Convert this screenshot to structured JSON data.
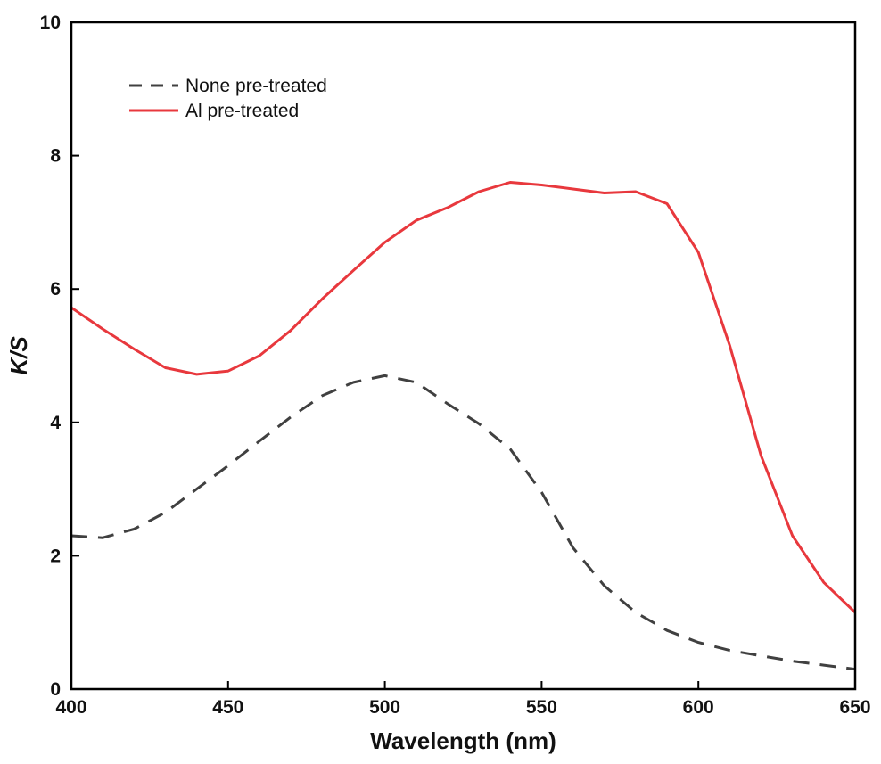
{
  "chart_data": {
    "type": "line",
    "title": "",
    "xlabel": "Wavelength (nm)",
    "ylabel": "K/S",
    "xlim": [
      400,
      650
    ],
    "ylim": [
      0,
      10
    ],
    "xticks": [
      400,
      450,
      500,
      550,
      600,
      650
    ],
    "yticks": [
      0,
      2,
      4,
      6,
      8,
      10
    ],
    "xtick_labels": [
      "400",
      "450",
      "500",
      "550",
      "600",
      "650"
    ],
    "ytick_labels": [
      "0",
      "2",
      "4",
      "6",
      "8",
      "10"
    ],
    "grid": false,
    "legend_position": "top-left",
    "x": [
      400,
      410,
      420,
      430,
      440,
      450,
      460,
      470,
      480,
      490,
      500,
      510,
      520,
      530,
      540,
      550,
      560,
      570,
      580,
      590,
      600,
      610,
      620,
      630,
      640,
      650
    ],
    "series": [
      {
        "name": "None pre-treated",
        "style": "dashed",
        "color": "#404040",
        "values": [
          2.3,
          2.27,
          2.4,
          2.65,
          3.0,
          3.35,
          3.72,
          4.08,
          4.4,
          4.6,
          4.7,
          4.6,
          4.28,
          3.98,
          3.6,
          2.95,
          2.12,
          1.55,
          1.15,
          0.88,
          0.7,
          0.58,
          0.5,
          0.42,
          0.36,
          0.3
        ]
      },
      {
        "name": "Al pre-treated",
        "style": "solid",
        "color": "#e8383d",
        "values": [
          5.72,
          5.4,
          5.1,
          4.82,
          4.72,
          4.77,
          5.0,
          5.38,
          5.85,
          6.28,
          6.7,
          7.03,
          7.22,
          7.46,
          7.6,
          7.56,
          7.5,
          7.44,
          7.46,
          7.28,
          6.55,
          5.15,
          3.5,
          2.3,
          1.6,
          1.15
        ]
      }
    ]
  }
}
